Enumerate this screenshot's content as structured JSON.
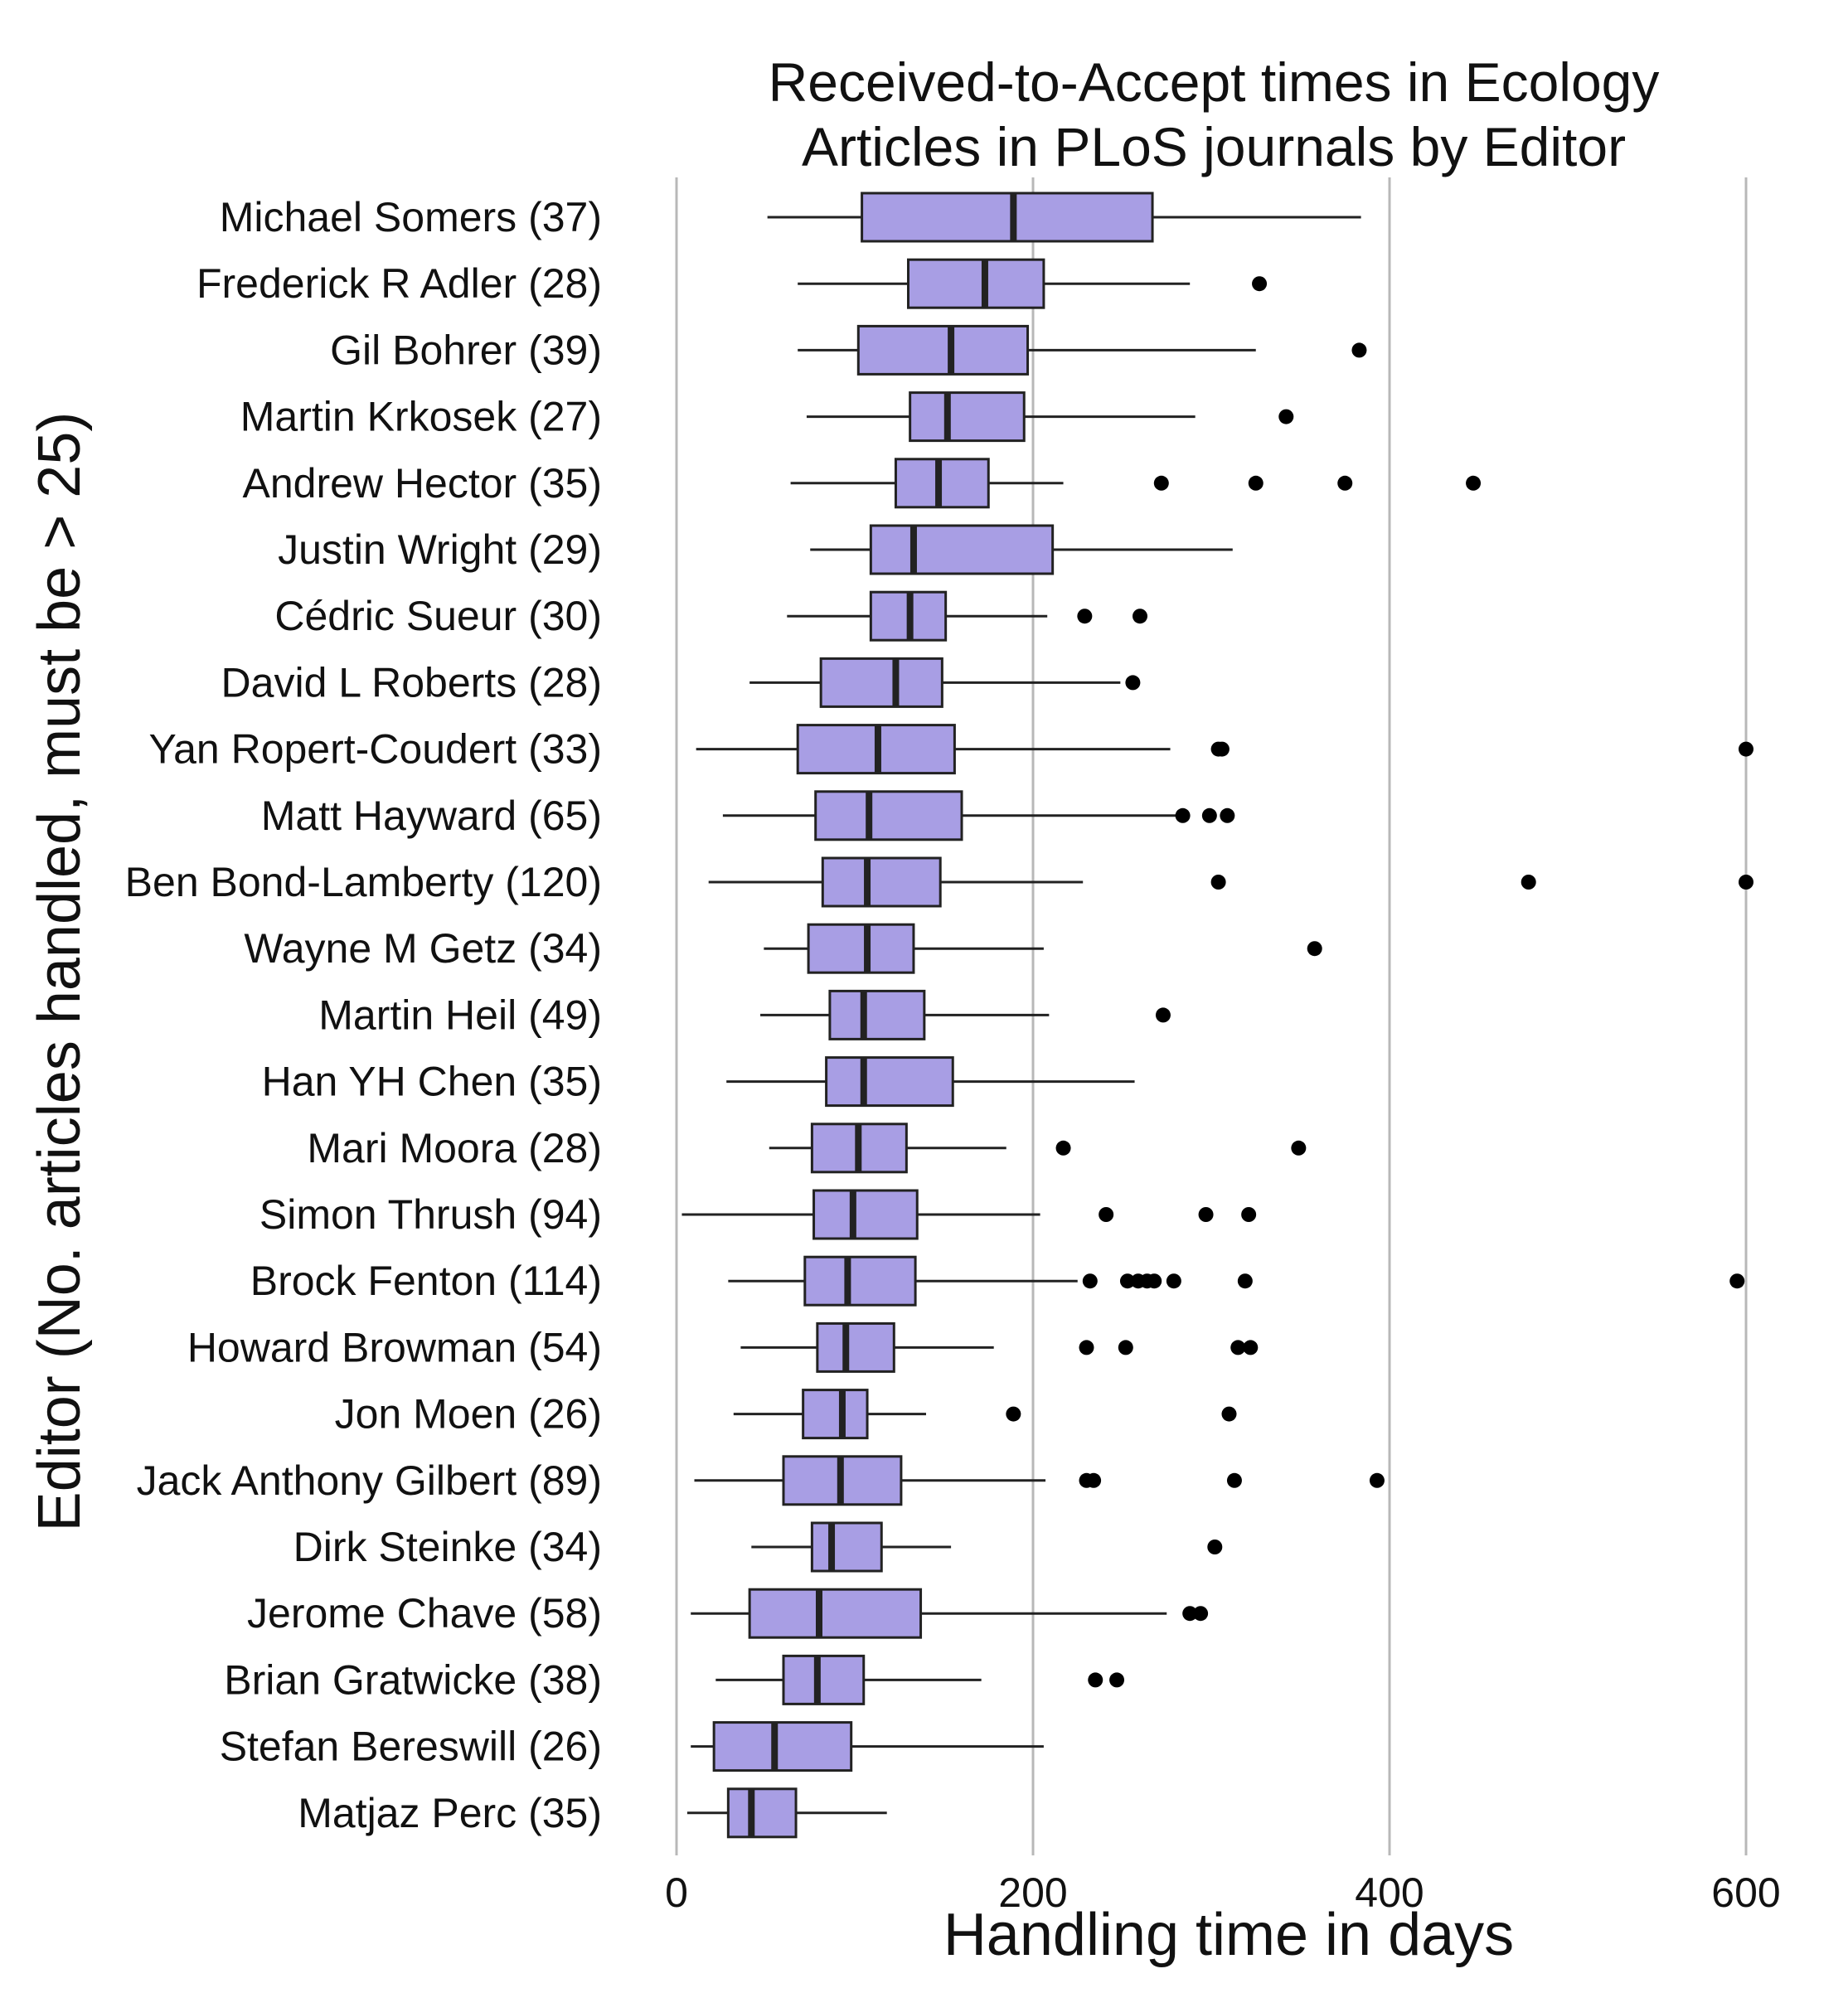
{
  "chart_data": {
    "type": "boxplot",
    "title": [
      "Received-to-Accept times in Ecology",
      "Articles in PLoS journals by Editor"
    ],
    "xlabel": "Handling time in days",
    "ylabel": "Editor (No. articles handled, must be > 25)",
    "xlim": [
      -4,
      620
    ],
    "xticks": [
      0,
      200,
      400,
      600
    ],
    "grid": "vertical major gridlines",
    "box_color": "#a89ee4",
    "categories": [
      {
        "label": "Michael Somers (37)",
        "whisker_low": 51,
        "q1": 104,
        "median": 189,
        "q3": 267,
        "whisker_high": 384,
        "outliers": []
      },
      {
        "label": "Frederick R Adler (28)",
        "whisker_low": 68,
        "q1": 130,
        "median": 173,
        "q3": 206,
        "whisker_high": 288,
        "outliers": [
          327
        ]
      },
      {
        "label": "Gil Bohrer (39)",
        "whisker_low": 68,
        "q1": 102,
        "median": 154,
        "q3": 197,
        "whisker_high": 325,
        "outliers": [
          383
        ]
      },
      {
        "label": "Martin Krkosek (27)",
        "whisker_low": 73,
        "q1": 131,
        "median": 152,
        "q3": 195,
        "whisker_high": 291,
        "outliers": [
          342
        ]
      },
      {
        "label": "Andrew Hector (35)",
        "whisker_low": 64,
        "q1": 123,
        "median": 147,
        "q3": 175,
        "whisker_high": 217,
        "outliers": [
          272,
          325,
          375,
          447
        ]
      },
      {
        "label": "Justin Wright (29)",
        "whisker_low": 75,
        "q1": 109,
        "median": 133,
        "q3": 211,
        "whisker_high": 312,
        "outliers": []
      },
      {
        "label": "Cédric Sueur (30)",
        "whisker_low": 62,
        "q1": 109,
        "median": 131,
        "q3": 151,
        "whisker_high": 208,
        "outliers": [
          229,
          260
        ]
      },
      {
        "label": "David L Roberts (28)",
        "whisker_low": 41,
        "q1": 81,
        "median": 123,
        "q3": 149,
        "whisker_high": 249,
        "outliers": [
          256
        ]
      },
      {
        "label": "Yan Ropert-Coudert (33)",
        "whisker_low": 11,
        "q1": 68,
        "median": 113,
        "q3": 156,
        "whisker_high": 277,
        "outliers": [
          304,
          306,
          600
        ]
      },
      {
        "label": "Matt Hayward (65)",
        "whisker_low": 26,
        "q1": 78,
        "median": 108,
        "q3": 160,
        "whisker_high": 284,
        "outliers": [
          284,
          299,
          309
        ]
      },
      {
        "label": "Ben Bond-Lamberty (120)",
        "whisker_low": 18,
        "q1": 82,
        "median": 107,
        "q3": 148,
        "whisker_high": 228,
        "outliers": [
          304,
          478,
          600
        ]
      },
      {
        "label": "Wayne M Getz (34)",
        "whisker_low": 49,
        "q1": 74,
        "median": 107,
        "q3": 133,
        "whisker_high": 206,
        "outliers": [
          358
        ]
      },
      {
        "label": "Martin Heil (49)",
        "whisker_low": 47,
        "q1": 86,
        "median": 105,
        "q3": 139,
        "whisker_high": 209,
        "outliers": [
          273
        ]
      },
      {
        "label": "Han YH Chen (35)",
        "whisker_low": 28,
        "q1": 84,
        "median": 105,
        "q3": 155,
        "whisker_high": 257,
        "outliers": []
      },
      {
        "label": "Mari Moora (28)",
        "whisker_low": 52,
        "q1": 76,
        "median": 102,
        "q3": 129,
        "whisker_high": 185,
        "outliers": [
          217,
          349
        ]
      },
      {
        "label": "Simon Thrush (94)",
        "whisker_low": 3,
        "q1": 77,
        "median": 99,
        "q3": 135,
        "whisker_high": 204,
        "outliers": [
          241,
          297,
          321
        ]
      },
      {
        "label": "Brock Fenton (114)",
        "whisker_low": 29,
        "q1": 72,
        "median": 96,
        "q3": 134,
        "whisker_high": 225,
        "outliers": [
          232,
          253,
          259,
          264,
          268,
          279,
          319,
          595
        ]
      },
      {
        "label": "Howard Browman (54)",
        "whisker_low": 36,
        "q1": 79,
        "median": 95,
        "q3": 122,
        "whisker_high": 178,
        "outliers": [
          230,
          252,
          315,
          322
        ]
      },
      {
        "label": "Jon Moen (26)",
        "whisker_low": 32,
        "q1": 71,
        "median": 93,
        "q3": 107,
        "whisker_high": 140,
        "outliers": [
          189,
          310
        ]
      },
      {
        "label": "Jack Anthony Gilbert (89)",
        "whisker_low": 10,
        "q1": 60,
        "median": 92,
        "q3": 126,
        "whisker_high": 207,
        "outliers": [
          230,
          234,
          313,
          393
        ]
      },
      {
        "label": "Dirk Steinke (34)",
        "whisker_low": 42,
        "q1": 76,
        "median": 87,
        "q3": 115,
        "whisker_high": 154,
        "outliers": [
          302
        ]
      },
      {
        "label": "Jerome Chave (58)",
        "whisker_low": 8,
        "q1": 41,
        "median": 80,
        "q3": 137,
        "whisker_high": 275,
        "outliers": [
          288,
          294
        ]
      },
      {
        "label": "Brian Gratwicke (38)",
        "whisker_low": 22,
        "q1": 60,
        "median": 79,
        "q3": 105,
        "whisker_high": 171,
        "outliers": [
          235,
          247
        ]
      },
      {
        "label": "Stefan Bereswill (26)",
        "whisker_low": 8,
        "q1": 21,
        "median": 55,
        "q3": 98,
        "whisker_high": 206,
        "outliers": []
      },
      {
        "label": "Matjaz Perc (35)",
        "whisker_low": 6,
        "q1": 29,
        "median": 42,
        "q3": 67,
        "whisker_high": 118,
        "outliers": []
      }
    ]
  }
}
